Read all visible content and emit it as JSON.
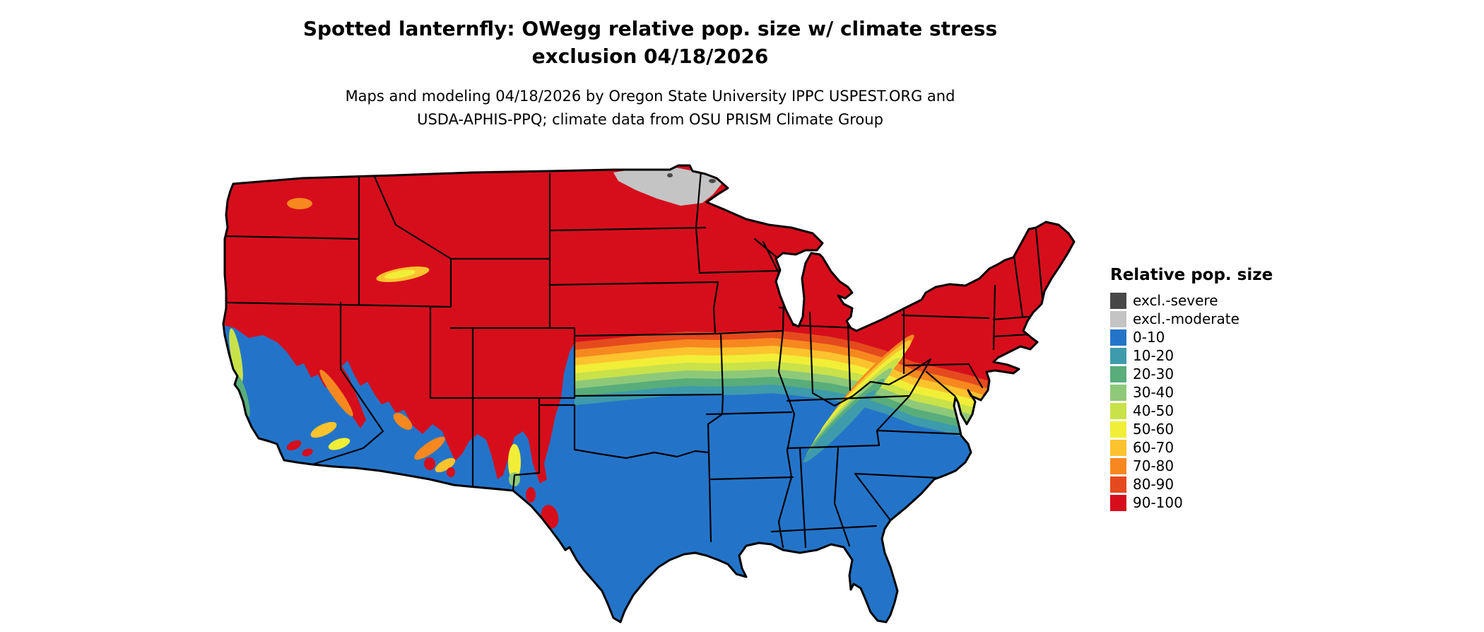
{
  "title": {
    "line1": "Spotted lanternfly: OWegg relative pop. size w/ climate stress",
    "line2": "exclusion 04/18/2026"
  },
  "subtitle": {
    "line1": "Maps and modeling 04/18/2026 by Oregon State University IPPC USPEST.ORG and",
    "line2": "USDA-APHIS-PPQ; climate data from OSU PRISM Climate Group"
  },
  "legend": {
    "title": "Relative pop. size",
    "items": [
      {
        "label": "excl.-severe",
        "color": "#474747"
      },
      {
        "label": "excl.-moderate",
        "color": "#c4c4c4"
      },
      {
        "label": "0-10",
        "color": "#2374c9"
      },
      {
        "label": "10-20",
        "color": "#3e9bab"
      },
      {
        "label": "20-30",
        "color": "#58ad7b"
      },
      {
        "label": "30-40",
        "color": "#8ec979"
      },
      {
        "label": "40-50",
        "color": "#c9e24a"
      },
      {
        "label": "50-60",
        "color": "#f1ee38"
      },
      {
        "label": "60-70",
        "color": "#fcc32e"
      },
      {
        "label": "70-80",
        "color": "#f6881f"
      },
      {
        "label": "80-90",
        "color": "#e54a1e"
      },
      {
        "label": "90-100",
        "color": "#d60e1c"
      }
    ]
  }
}
